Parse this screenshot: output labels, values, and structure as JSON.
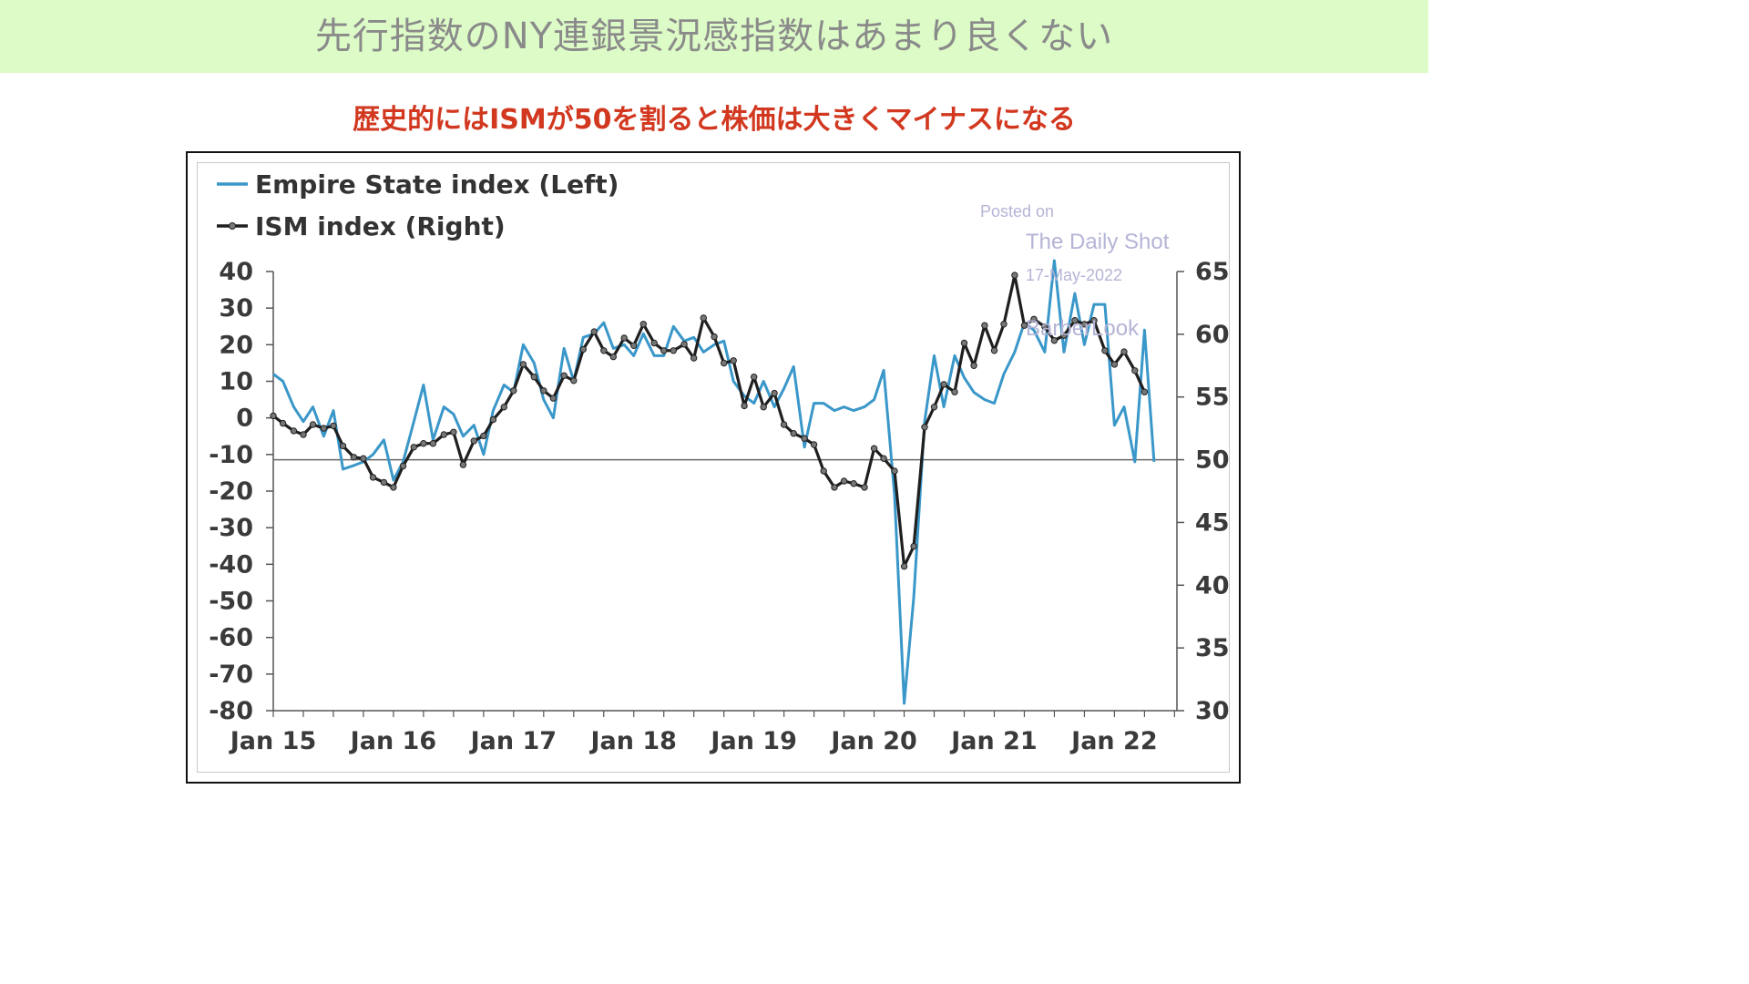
{
  "header": {
    "title": "先行指数のNY連銀景況感指数はあまり良くない"
  },
  "subtitle": "歴史的にはISMが50を割ると株価は大きくマイナスになる",
  "colors": {
    "header_band": "#dcfbc6",
    "subtitle": "#d2381f",
    "empire": "#3a97c9",
    "ism": "#1f1f1f"
  },
  "watermark": {
    "line1": "Posted on",
    "line2": "The Daily Shot",
    "line3": "17-May-2022",
    "line4": "BarberLook"
  },
  "chart_data": {
    "type": "line",
    "legend": [
      {
        "label": "Empire State index (Left)",
        "marker": "line"
      },
      {
        "label": "ISM index (Right)",
        "marker": "line-with-dots"
      }
    ],
    "legend_position": "top-left",
    "x_tick_labels": [
      "Jan 15",
      "Jan 16",
      "Jan 17",
      "Jan 18",
      "Jan 19",
      "Jan 20",
      "Jan 21",
      "Jan 22"
    ],
    "x_tick_years": [
      2015,
      2016,
      2017,
      2018,
      2019,
      2020,
      2021,
      2022
    ],
    "x_range": [
      2015.0,
      2022.52
    ],
    "y_left": {
      "ticks": [
        40,
        30,
        20,
        10,
        0,
        -10,
        -20,
        -30,
        -40,
        -50,
        -60,
        -70,
        -80
      ],
      "range": [
        -80,
        40
      ]
    },
    "y_right": {
      "ticks": [
        65,
        60,
        55,
        50,
        45,
        40,
        35,
        30
      ],
      "range": [
        30,
        65
      ]
    },
    "reference_line": {
      "axis": "right",
      "value": 50
    },
    "grid": false,
    "series": [
      {
        "name": "Empire State index (Left)",
        "axis": "left",
        "x": [
          2015.0,
          2015.08,
          2015.17,
          2015.25,
          2015.33,
          2015.42,
          2015.5,
          2015.58,
          2015.67,
          2015.75,
          2015.83,
          2015.92,
          2016.0,
          2016.08,
          2016.17,
          2016.25,
          2016.33,
          2016.42,
          2016.5,
          2016.58,
          2016.67,
          2016.75,
          2016.83,
          2016.92,
          2017.0,
          2017.08,
          2017.17,
          2017.25,
          2017.33,
          2017.42,
          2017.5,
          2017.58,
          2017.67,
          2017.75,
          2017.83,
          2017.92,
          2018.0,
          2018.08,
          2018.17,
          2018.25,
          2018.33,
          2018.42,
          2018.5,
          2018.58,
          2018.67,
          2018.75,
          2018.83,
          2018.92,
          2019.0,
          2019.08,
          2019.17,
          2019.25,
          2019.33,
          2019.42,
          2019.5,
          2019.58,
          2019.67,
          2019.75,
          2019.83,
          2019.92,
          2020.0,
          2020.08,
          2020.17,
          2020.25,
          2020.33,
          2020.42,
          2020.5,
          2020.58,
          2020.67,
          2020.75,
          2020.83,
          2020.92,
          2021.0,
          2021.08,
          2021.17,
          2021.25,
          2021.33,
          2021.42,
          2021.5,
          2021.58,
          2021.67,
          2021.75,
          2021.83,
          2021.92,
          2022.0,
          2022.08,
          2022.17,
          2022.25,
          2022.33
        ],
        "values": [
          12,
          10,
          3,
          -1,
          3,
          -5,
          2,
          -14,
          -13,
          -12,
          -10,
          -6,
          -17,
          -12,
          -1,
          9,
          -6,
          3,
          1,
          -5,
          -2,
          -10,
          2,
          9,
          7,
          20,
          15,
          5,
          0,
          19,
          10,
          22,
          23,
          26,
          19,
          20,
          17,
          23,
          17,
          17,
          25,
          21,
          22,
          18,
          20,
          21,
          10,
          6,
          4,
          10,
          3,
          8,
          14,
          -8,
          4,
          4,
          2,
          3,
          2,
          3,
          5,
          13,
          -21,
          -78,
          -49,
          -1,
          17,
          3,
          17,
          11,
          7,
          5,
          4,
          12,
          18,
          26,
          24,
          18,
          43,
          18,
          34,
          20,
          31,
          31,
          -2,
          3,
          -12,
          24,
          -12
        ]
      },
      {
        "name": "ISM index (Right)",
        "axis": "right",
        "x": [
          2015.0,
          2015.08,
          2015.17,
          2015.25,
          2015.33,
          2015.42,
          2015.5,
          2015.58,
          2015.67,
          2015.75,
          2015.83,
          2015.92,
          2016.0,
          2016.08,
          2016.17,
          2016.25,
          2016.33,
          2016.42,
          2016.5,
          2016.58,
          2016.67,
          2016.75,
          2016.83,
          2016.92,
          2017.0,
          2017.08,
          2017.17,
          2017.25,
          2017.33,
          2017.42,
          2017.5,
          2017.58,
          2017.67,
          2017.75,
          2017.83,
          2017.92,
          2018.0,
          2018.08,
          2018.17,
          2018.25,
          2018.33,
          2018.42,
          2018.5,
          2018.58,
          2018.67,
          2018.75,
          2018.83,
          2018.92,
          2019.0,
          2019.08,
          2019.17,
          2019.25,
          2019.33,
          2019.42,
          2019.5,
          2019.58,
          2019.67,
          2019.75,
          2019.83,
          2019.92,
          2020.0,
          2020.08,
          2020.17,
          2020.25,
          2020.33,
          2020.42,
          2020.5,
          2020.58,
          2020.67,
          2020.75,
          2020.83,
          2020.92,
          2021.0,
          2021.08,
          2021.17,
          2021.25,
          2021.33,
          2021.42,
          2021.5,
          2021.58,
          2021.67,
          2021.75,
          2021.83,
          2021.92,
          2022.0,
          2022.08,
          2022.17,
          2022.25
        ],
        "values": [
          53.5,
          52.9,
          52.3,
          52.0,
          52.8,
          52.5,
          52.7,
          51.1,
          50.2,
          50.1,
          48.6,
          48.2,
          47.8,
          49.5,
          51.0,
          51.3,
          51.3,
          52.0,
          52.2,
          49.6,
          51.5,
          51.9,
          53.2,
          54.2,
          55.5,
          57.6,
          56.6,
          55.5,
          54.9,
          56.7,
          56.3,
          58.8,
          60.2,
          58.7,
          58.2,
          59.7,
          59.1,
          60.8,
          59.3,
          58.7,
          58.7,
          59.2,
          58.1,
          61.3,
          59.8,
          57.7,
          57.9,
          54.3,
          56.6,
          54.2,
          55.3,
          52.8,
          52.1,
          51.7,
          51.2,
          49.1,
          47.8,
          48.3,
          48.1,
          47.8,
          50.9,
          50.1,
          49.1,
          41.5,
          43.1,
          52.6,
          54.2,
          56.0,
          55.4,
          59.3,
          57.5,
          60.7,
          58.7,
          60.8,
          64.7,
          60.7,
          61.2,
          60.6,
          59.5,
          59.9,
          61.1,
          60.8,
          61.1,
          58.7,
          57.6,
          58.6,
          57.1,
          55.4
        ]
      }
    ]
  }
}
